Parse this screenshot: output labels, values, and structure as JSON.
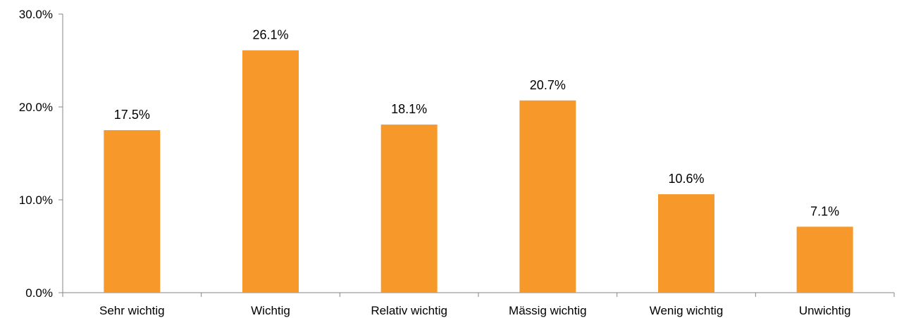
{
  "chart_data": {
    "type": "bar",
    "categories": [
      "Sehr wichtig",
      "Wichtig",
      "Relativ wichtig",
      "Mässig wichtig",
      "Wenig wichtig",
      "Unwichtig"
    ],
    "values": [
      17.5,
      26.1,
      18.1,
      20.7,
      10.6,
      7.1
    ],
    "value_labels": [
      "17.5%",
      "26.1%",
      "18.1%",
      "20.7%",
      "10.6%",
      "7.1%"
    ],
    "ylim": [
      0,
      30
    ],
    "yticks": [
      0,
      10,
      20,
      30
    ],
    "ytick_labels": [
      "0.0%",
      "10.0%",
      "20.0%",
      "30.0%"
    ],
    "title": "",
    "xlabel": "",
    "ylabel": "",
    "grid": false,
    "legend": "none",
    "colors": {
      "bar": "#F7982A",
      "axis": "#868686"
    }
  }
}
